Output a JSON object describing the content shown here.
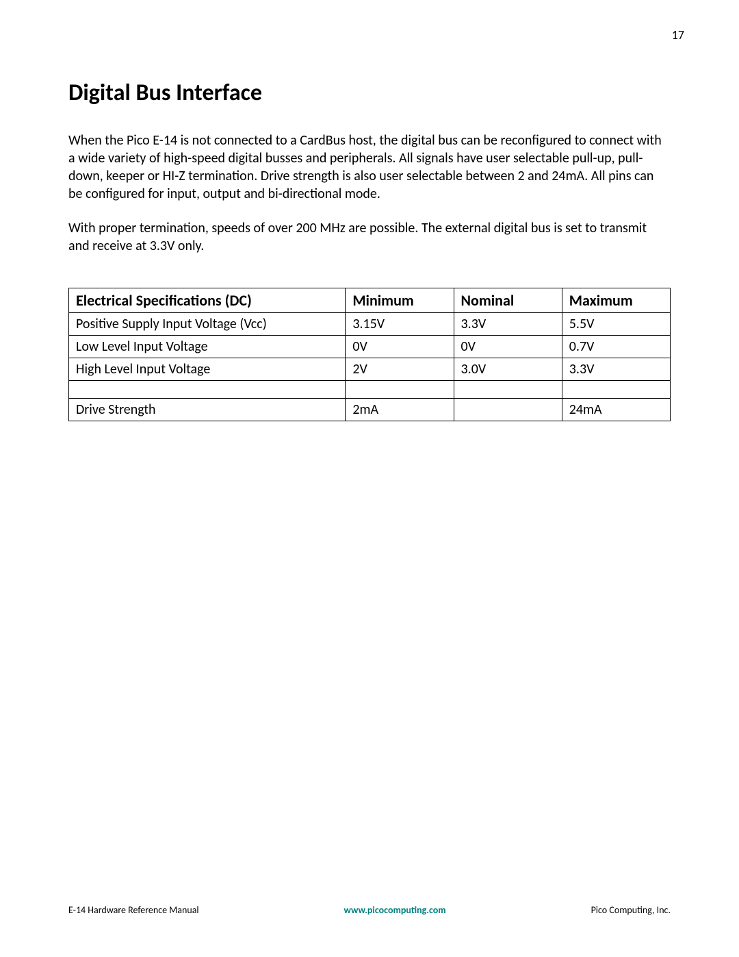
{
  "page_number": "17",
  "section_title": "Digital Bus Interface",
  "paragraphs": [
    "When the Pico E-14 is not connected to a CardBus host, the digital bus can be reconfigured to connect with a wide variety of high-speed digital busses and peripherals. All signals have user selectable pull-up, pull-down, keeper or HI-Z termination. Drive strength is also user selectable between 2 and 24mA. All pins can be configured for input, output and bi-directional mode.",
    "With proper termination, speeds of over 200 MHz are possible. The external digital bus is set to transmit and receive at 3.3V only."
  ],
  "table": {
    "type": "table",
    "headers": [
      "Electrical Specifications (DC)",
      "Minimum",
      "Nominal",
      "Maximum"
    ],
    "rows": [
      [
        "Positive Supply Input Voltage (Vcc)",
        "3.15V",
        "3.3V",
        "5.5V"
      ],
      [
        "Low Level Input Voltage",
        "0V",
        "0V",
        "0.7V"
      ],
      [
        "High Level Input Voltage",
        "2V",
        "3.0V",
        "3.3V"
      ],
      [
        "",
        "",
        "",
        ""
      ],
      [
        "Drive Strength",
        "2mA",
        "",
        "24mA"
      ]
    ],
    "border_color": "#000000",
    "background_color": "#ffffff",
    "header_fontsize": 22,
    "cell_fontsize": 20,
    "header_fontweight": "bold"
  },
  "footer": {
    "left": "E-14 Hardware Reference Manual",
    "center": "www.picocomputing.com",
    "right": "Pico Computing, Inc.",
    "center_color": "#008080"
  },
  "colors": {
    "text": "#000000",
    "background": "#ffffff",
    "link": "#008080"
  },
  "typography": {
    "title_fontsize": 34,
    "body_fontsize": 20,
    "footer_fontsize": 14,
    "font_family": "Calibri"
  }
}
